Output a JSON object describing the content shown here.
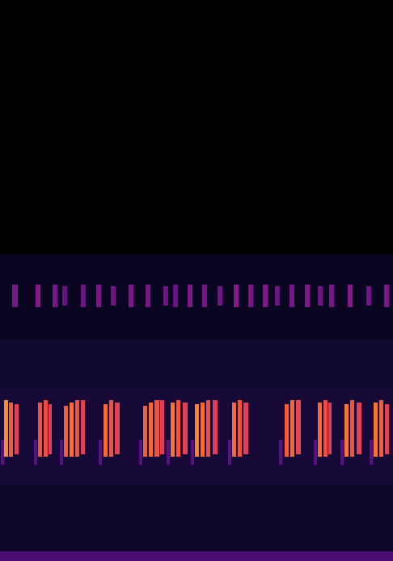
{
  "chart_data": {
    "type": "heatmap",
    "xlim": [
      0,
      486
    ],
    "ylim": [
      0,
      694
    ],
    "tick_labels": false,
    "grid": false,
    "vlim": [
      0,
      1
    ],
    "cells": [
      {
        "x0": 0,
        "x1": 486,
        "y0": 0,
        "y1": 12,
        "v": 0.3
      },
      {
        "x0": 0,
        "x1": 486,
        "y0": 12,
        "y1": 95,
        "v": 0.1
      },
      {
        "x0": 0,
        "x1": 486,
        "y0": 95,
        "y1": 215,
        "v": 0.13
      },
      {
        "x0": 0,
        "x1": 486,
        "y0": 215,
        "y1": 275,
        "v": 0.11
      },
      {
        "x0": 0,
        "x1": 486,
        "y0": 275,
        "y1": 380,
        "v": 0.08
      },
      {
        "x0": 15,
        "x1": 22,
        "y0": 314,
        "y1": 342,
        "v": 0.42
      },
      {
        "x0": 44,
        "x1": 50,
        "y0": 314,
        "y1": 342,
        "v": 0.45
      },
      {
        "x0": 65,
        "x1": 71,
        "y0": 314,
        "y1": 342,
        "v": 0.42
      },
      {
        "x0": 77,
        "x1": 83,
        "y0": 316,
        "y1": 340,
        "v": 0.38
      },
      {
        "x0": 100,
        "x1": 106,
        "y0": 314,
        "y1": 342,
        "v": 0.4
      },
      {
        "x0": 119,
        "x1": 125,
        "y0": 314,
        "y1": 342,
        "v": 0.43
      },
      {
        "x0": 137,
        "x1": 143,
        "y0": 316,
        "y1": 340,
        "v": 0.4
      },
      {
        "x0": 159,
        "x1": 165,
        "y0": 314,
        "y1": 342,
        "v": 0.44
      },
      {
        "x0": 180,
        "x1": 186,
        "y0": 314,
        "y1": 342,
        "v": 0.42
      },
      {
        "x0": 202,
        "x1": 208,
        "y0": 316,
        "y1": 340,
        "v": 0.4
      },
      {
        "x0": 214,
        "x1": 220,
        "y0": 314,
        "y1": 342,
        "v": 0.38
      },
      {
        "x0": 232,
        "x1": 238,
        "y0": 314,
        "y1": 342,
        "v": 0.44
      },
      {
        "x0": 250,
        "x1": 256,
        "y0": 314,
        "y1": 342,
        "v": 0.42
      },
      {
        "x0": 269,
        "x1": 275,
        "y0": 316,
        "y1": 340,
        "v": 0.4
      },
      {
        "x0": 289,
        "x1": 295,
        "y0": 314,
        "y1": 342,
        "v": 0.45
      },
      {
        "x0": 307,
        "x1": 313,
        "y0": 314,
        "y1": 342,
        "v": 0.42
      },
      {
        "x0": 325,
        "x1": 331,
        "y0": 314,
        "y1": 342,
        "v": 0.44
      },
      {
        "x0": 340,
        "x1": 346,
        "y0": 316,
        "y1": 340,
        "v": 0.4
      },
      {
        "x0": 358,
        "x1": 364,
        "y0": 314,
        "y1": 342,
        "v": 0.42
      },
      {
        "x0": 377,
        "x1": 383,
        "y0": 314,
        "y1": 342,
        "v": 0.44
      },
      {
        "x0": 393,
        "x1": 399,
        "y0": 316,
        "y1": 340,
        "v": 0.4
      },
      {
        "x0": 407,
        "x1": 413,
        "y0": 314,
        "y1": 342,
        "v": 0.42
      },
      {
        "x0": 430,
        "x1": 436,
        "y0": 314,
        "y1": 342,
        "v": 0.45
      },
      {
        "x0": 453,
        "x1": 459,
        "y0": 316,
        "y1": 340,
        "v": 0.4
      },
      {
        "x0": 475,
        "x1": 481,
        "y0": 314,
        "y1": 342,
        "v": 0.43
      },
      {
        "x0": 1,
        "x1": 5,
        "y0": 119,
        "y1": 150,
        "v": 0.35
      },
      {
        "x0": 5,
        "x1": 10,
        "y0": 129,
        "y1": 199,
        "v": 0.9
      },
      {
        "x0": 11,
        "x1": 16,
        "y0": 129,
        "y1": 196,
        "v": 0.82
      },
      {
        "x0": 18,
        "x1": 23,
        "y0": 132,
        "y1": 194,
        "v": 0.72
      },
      {
        "x0": 42,
        "x1": 46,
        "y0": 119,
        "y1": 150,
        "v": 0.35
      },
      {
        "x0": 47,
        "x1": 52,
        "y0": 129,
        "y1": 196,
        "v": 0.8
      },
      {
        "x0": 54,
        "x1": 59,
        "y0": 129,
        "y1": 199,
        "v": 0.78
      },
      {
        "x0": 60,
        "x1": 64,
        "y0": 132,
        "y1": 194,
        "v": 0.7
      },
      {
        "x0": 74,
        "x1": 78,
        "y0": 119,
        "y1": 150,
        "v": 0.35
      },
      {
        "x0": 79,
        "x1": 84,
        "y0": 129,
        "y1": 192,
        "v": 0.82
      },
      {
        "x0": 86,
        "x1": 91,
        "y0": 129,
        "y1": 196,
        "v": 0.85
      },
      {
        "x0": 93,
        "x1": 98,
        "y0": 129,
        "y1": 199,
        "v": 0.8
      },
      {
        "x0": 100,
        "x1": 105,
        "y0": 132,
        "y1": 199,
        "v": 0.72
      },
      {
        "x0": 122,
        "x1": 126,
        "y0": 119,
        "y1": 150,
        "v": 0.35
      },
      {
        "x0": 128,
        "x1": 133,
        "y0": 129,
        "y1": 194,
        "v": 0.84
      },
      {
        "x0": 135,
        "x1": 140,
        "y0": 129,
        "y1": 199,
        "v": 0.8
      },
      {
        "x0": 142,
        "x1": 148,
        "y0": 132,
        "y1": 196,
        "v": 0.72
      },
      {
        "x0": 172,
        "x1": 176,
        "y0": 119,
        "y1": 150,
        "v": 0.35
      },
      {
        "x0": 177,
        "x1": 182,
        "y0": 129,
        "y1": 192,
        "v": 0.82
      },
      {
        "x0": 184,
        "x1": 189,
        "y0": 129,
        "y1": 196,
        "v": 0.84
      },
      {
        "x0": 191,
        "x1": 197,
        "y0": 129,
        "y1": 199,
        "v": 0.8
      },
      {
        "x0": 198,
        "x1": 203,
        "y0": 132,
        "y1": 199,
        "v": 0.7
      },
      {
        "x0": 206,
        "x1": 210,
        "y0": 119,
        "y1": 150,
        "v": 0.35
      },
      {
        "x0": 211,
        "x1": 216,
        "y0": 129,
        "y1": 196,
        "v": 0.86
      },
      {
        "x0": 218,
        "x1": 223,
        "y0": 129,
        "y1": 199,
        "v": 0.8
      },
      {
        "x0": 226,
        "x1": 232,
        "y0": 132,
        "y1": 196,
        "v": 0.72
      },
      {
        "x0": 236,
        "x1": 240,
        "y0": 119,
        "y1": 150,
        "v": 0.35
      },
      {
        "x0": 241,
        "x1": 246,
        "y0": 129,
        "y1": 194,
        "v": 0.88
      },
      {
        "x0": 248,
        "x1": 253,
        "y0": 129,
        "y1": 196,
        "v": 0.84
      },
      {
        "x0": 255,
        "x1": 260,
        "y0": 129,
        "y1": 199,
        "v": 0.78
      },
      {
        "x0": 263,
        "x1": 269,
        "y0": 132,
        "y1": 199,
        "v": 0.7
      },
      {
        "x0": 282,
        "x1": 286,
        "y0": 119,
        "y1": 150,
        "v": 0.35
      },
      {
        "x0": 287,
        "x1": 292,
        "y0": 129,
        "y1": 196,
        "v": 0.84
      },
      {
        "x0": 294,
        "x1": 299,
        "y0": 129,
        "y1": 199,
        "v": 0.8
      },
      {
        "x0": 301,
        "x1": 307,
        "y0": 132,
        "y1": 196,
        "v": 0.7
      },
      {
        "x0": 345,
        "x1": 349,
        "y0": 119,
        "y1": 150,
        "v": 0.35
      },
      {
        "x0": 352,
        "x1": 357,
        "y0": 129,
        "y1": 194,
        "v": 0.82
      },
      {
        "x0": 359,
        "x1": 364,
        "y0": 129,
        "y1": 199,
        "v": 0.84
      },
      {
        "x0": 366,
        "x1": 372,
        "y0": 132,
        "y1": 199,
        "v": 0.74
      },
      {
        "x0": 388,
        "x1": 392,
        "y0": 119,
        "y1": 150,
        "v": 0.35
      },
      {
        "x0": 393,
        "x1": 398,
        "y0": 129,
        "y1": 196,
        "v": 0.84
      },
      {
        "x0": 400,
        "x1": 405,
        "y0": 129,
        "y1": 199,
        "v": 0.78
      },
      {
        "x0": 406,
        "x1": 410,
        "y0": 132,
        "y1": 196,
        "v": 0.7
      },
      {
        "x0": 421,
        "x1": 425,
        "y0": 119,
        "y1": 150,
        "v": 0.35
      },
      {
        "x0": 426,
        "x1": 431,
        "y0": 129,
        "y1": 194,
        "v": 0.86
      },
      {
        "x0": 433,
        "x1": 438,
        "y0": 129,
        "y1": 199,
        "v": 0.8
      },
      {
        "x0": 441,
        "x1": 447,
        "y0": 132,
        "y1": 196,
        "v": 0.72
      },
      {
        "x0": 457,
        "x1": 461,
        "y0": 119,
        "y1": 150,
        "v": 0.35
      },
      {
        "x0": 462,
        "x1": 467,
        "y0": 129,
        "y1": 196,
        "v": 0.86
      },
      {
        "x0": 469,
        "x1": 474,
        "y0": 129,
        "y1": 199,
        "v": 0.82
      },
      {
        "x0": 476,
        "x1": 481,
        "y0": 132,
        "y1": 194,
        "v": 0.72
      }
    ]
  }
}
